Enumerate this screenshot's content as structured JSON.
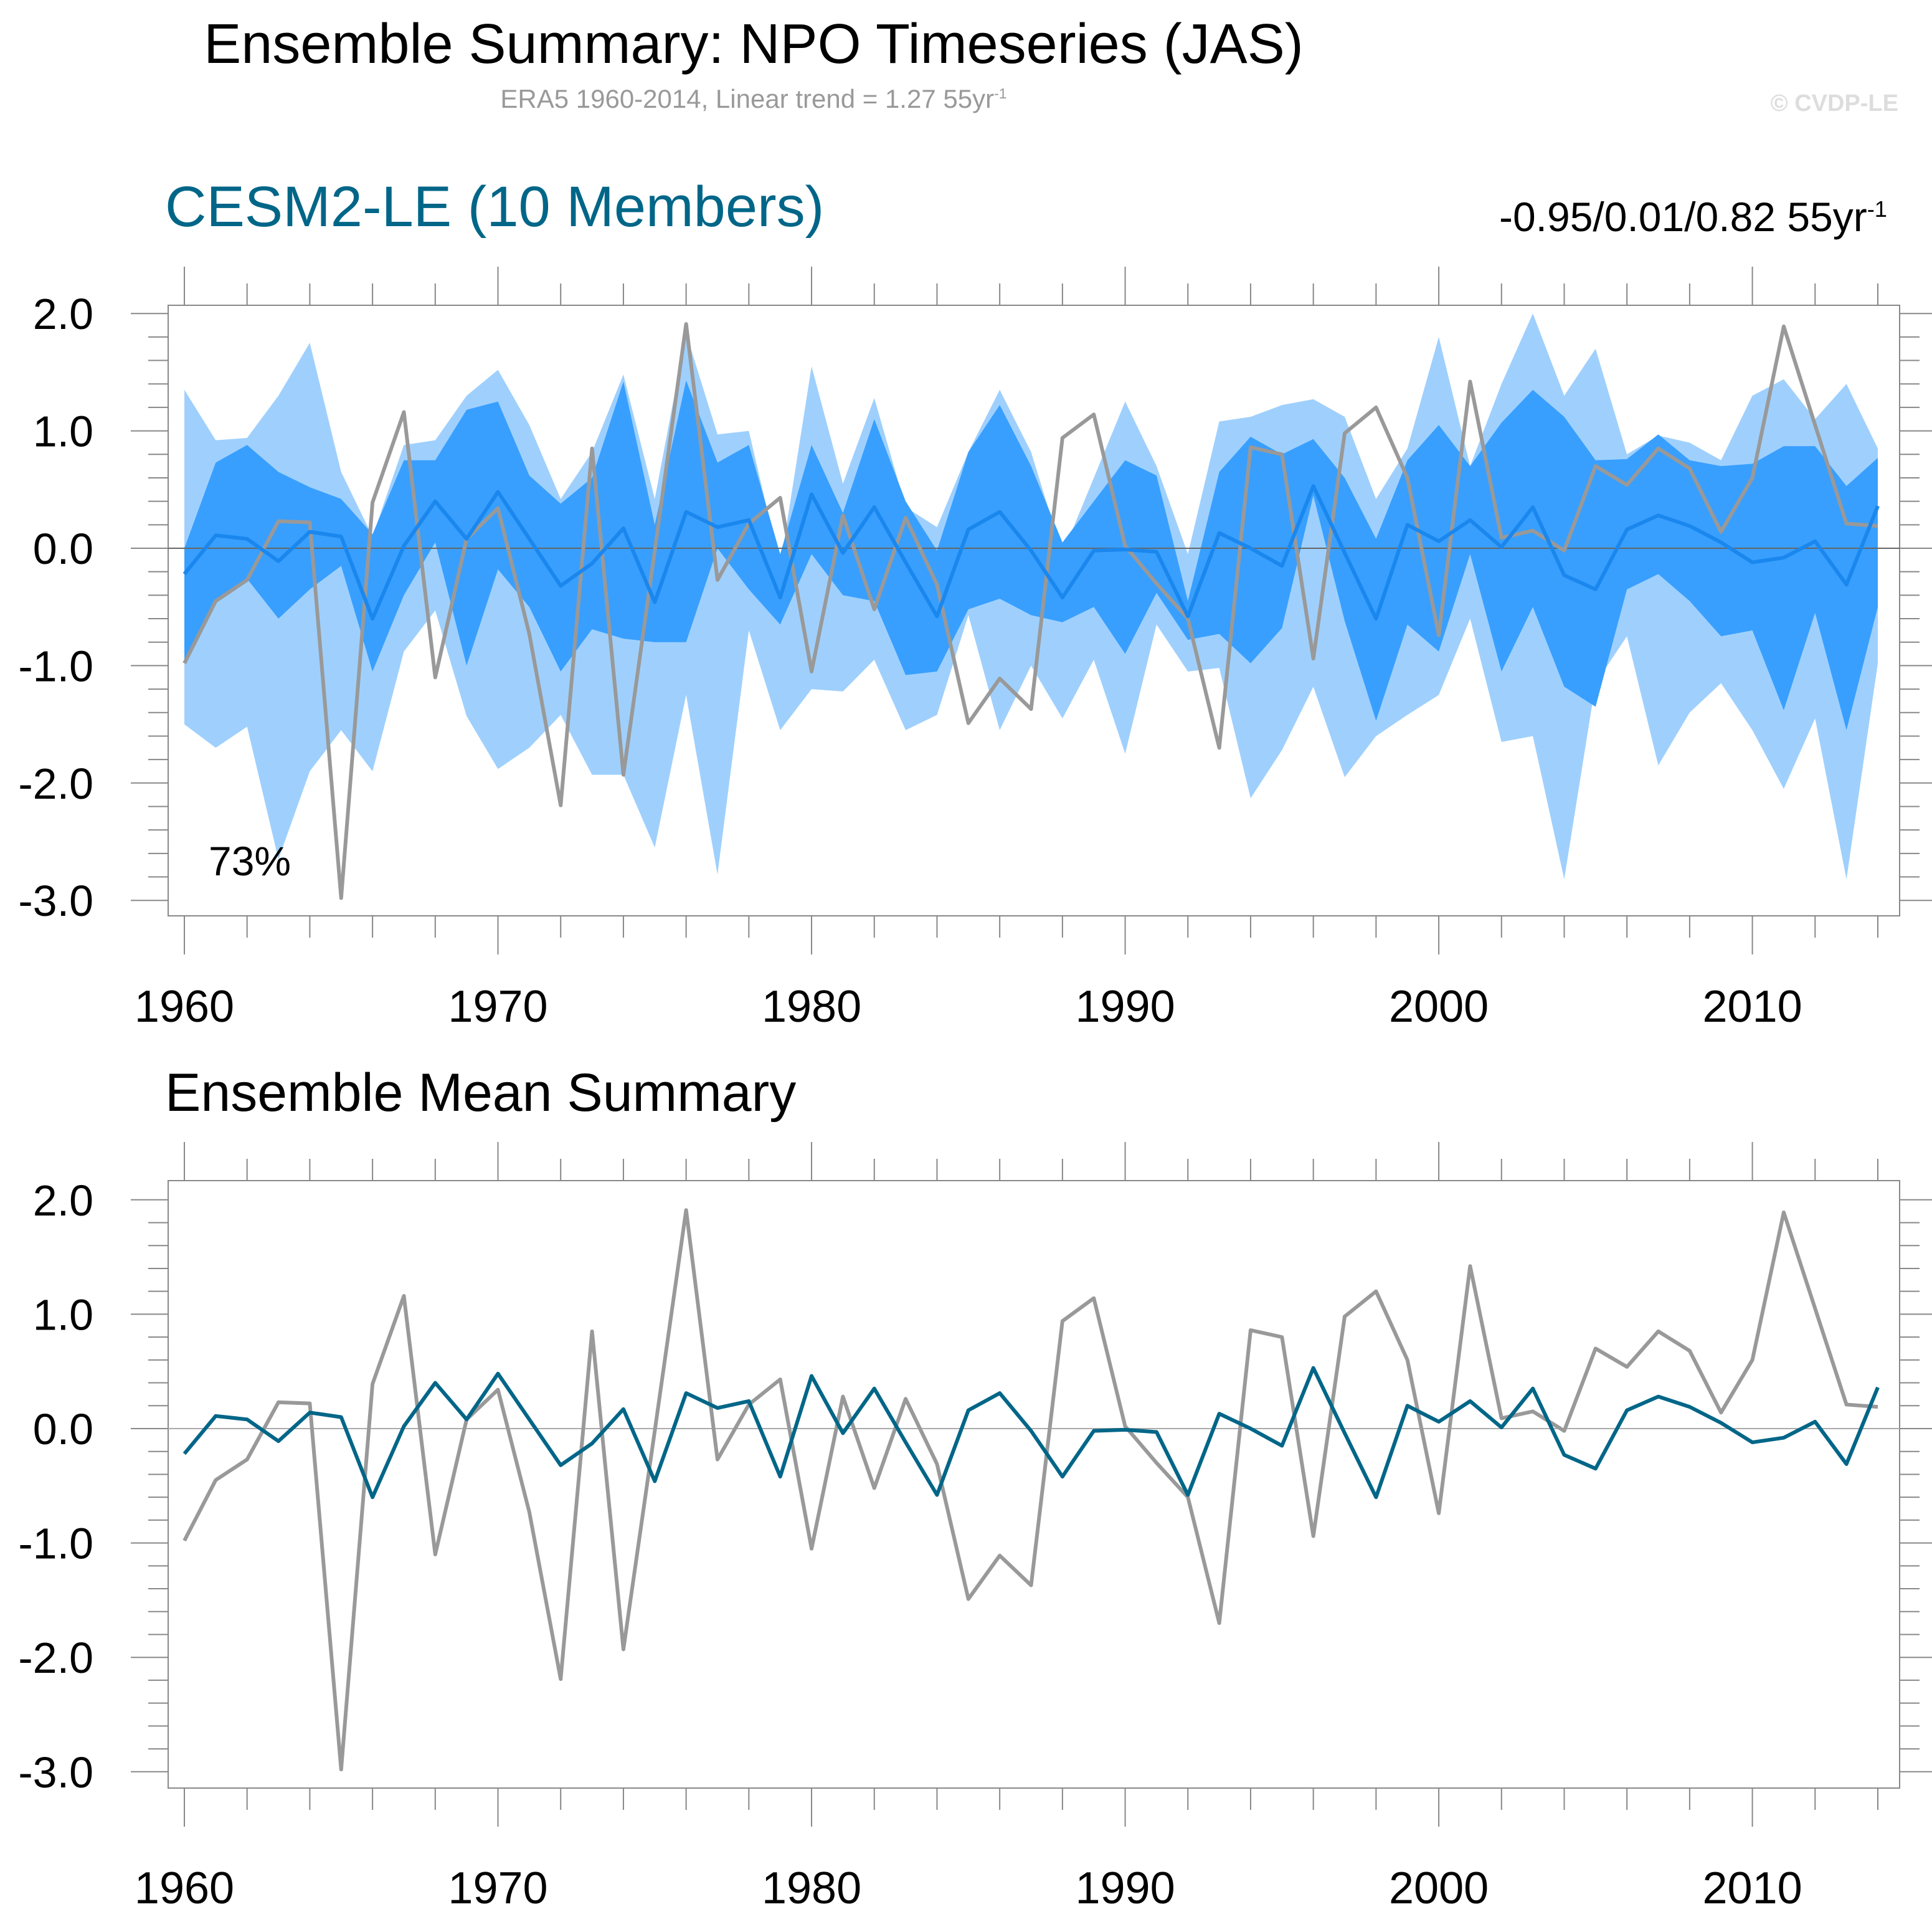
{
  "header": {
    "title": "Ensemble Summary: NPO Timeseries (JAS)",
    "subtitle": "ERA5 1960-2014, Linear trend = 1.27 55yr",
    "subtitle_sup": "-1",
    "copyright": "© CVDP-LE"
  },
  "panel_top": {
    "title": "CESM2-LE (10 Members)",
    "trend": "-0.95/0.01/0.82 55yr",
    "trend_sup": "-1",
    "annotation": "73%"
  },
  "panel_bottom": {
    "title": "Ensemble Mean Summary"
  },
  "colors": {
    "model_title": "#006688",
    "outer_band": "#9fd0fd",
    "inner_band": "#389ffe",
    "ensemble_mean_top": "#1a87ee",
    "ensemble_mean_bottom": "#006688",
    "observations": "#999999"
  },
  "chart_data": [
    {
      "type": "area",
      "title": "CESM2-LE (10 Members)",
      "xlabel": "",
      "ylabel": "",
      "xlim": [
        1960,
        2014
      ],
      "ylim": [
        -3.0,
        2.0
      ],
      "xticks": [
        "1960",
        "1970",
        "1980",
        "1990",
        "2000",
        "2010"
      ],
      "yticks": [
        "2.0",
        "1.0",
        "0.0",
        "-1.0",
        "-2.0",
        "-3.0"
      ],
      "x": [
        1960,
        1961,
        1962,
        1963,
        1964,
        1965,
        1966,
        1967,
        1968,
        1969,
        1970,
        1971,
        1972,
        1973,
        1974,
        1975,
        1976,
        1977,
        1978,
        1979,
        1980,
        1981,
        1982,
        1983,
        1984,
        1985,
        1986,
        1987,
        1988,
        1989,
        1990,
        1991,
        1992,
        1993,
        1994,
        1995,
        1996,
        1997,
        1998,
        1999,
        2000,
        2001,
        2002,
        2003,
        2004,
        2005,
        2006,
        2007,
        2008,
        2009,
        2010,
        2011,
        2012,
        2013,
        2014
      ],
      "series": [
        {
          "name": "ensemble max",
          "role": "outer-upper",
          "values": [
            1.35,
            0.92,
            0.94,
            1.3,
            1.75,
            0.65,
            0.1,
            0.88,
            0.92,
            1.3,
            1.52,
            1.05,
            0.42,
            0.82,
            1.48,
            0.42,
            1.83,
            0.97,
            1.0,
            -0.15,
            1.55,
            0.55,
            1.28,
            0.35,
            0.18,
            0.82,
            1.35,
            0.82,
            -0.05,
            0.6,
            1.25,
            0.7,
            -0.05,
            1.08,
            1.12,
            1.22,
            1.27,
            1.12,
            0.42,
            0.85,
            1.8,
            0.7,
            1.4,
            2.0,
            1.3,
            1.7,
            0.8,
            0.96,
            0.9,
            0.75,
            1.3,
            1.44,
            1.1,
            1.4,
            0.85
          ]
        },
        {
          "name": "ensemble 84th pct",
          "role": "inner-upper",
          "values": [
            0.0,
            0.73,
            0.88,
            0.65,
            0.52,
            0.42,
            0.12,
            0.75,
            0.75,
            1.18,
            1.25,
            0.62,
            0.38,
            0.6,
            1.42,
            0.2,
            1.43,
            0.73,
            0.88,
            -0.05,
            0.88,
            0.3,
            1.1,
            0.4,
            -0.02,
            0.82,
            1.22,
            0.7,
            0.05,
            0.4,
            0.75,
            0.62,
            -0.45,
            0.65,
            0.95,
            0.8,
            0.93,
            0.6,
            0.08,
            0.75,
            1.05,
            0.7,
            1.07,
            1.35,
            1.12,
            0.75,
            0.76,
            0.97,
            0.75,
            0.7,
            0.72,
            0.87,
            0.87,
            0.53,
            0.77
          ]
        },
        {
          "name": "ensemble 16th pct",
          "role": "inner-lower",
          "values": [
            -0.95,
            -0.45,
            -0.26,
            -0.6,
            -0.35,
            -0.15,
            -1.05,
            -0.4,
            0.05,
            -1.0,
            -0.18,
            -0.5,
            -1.05,
            -0.69,
            -0.77,
            -0.8,
            -0.8,
            0.0,
            -0.35,
            -0.65,
            -0.05,
            -0.4,
            -0.45,
            -1.08,
            -1.05,
            -0.52,
            -0.43,
            -0.57,
            -0.63,
            -0.5,
            -0.9,
            -0.38,
            -0.78,
            -0.73,
            -0.98,
            -0.68,
            0.45,
            -0.62,
            -1.47,
            -0.65,
            -0.88,
            -0.05,
            -1.05,
            -0.5,
            -1.18,
            -1.35,
            -0.35,
            -0.22,
            -0.45,
            -0.75,
            -0.7,
            -1.38,
            -0.55,
            -1.55,
            -0.5
          ]
        },
        {
          "name": "ensemble min",
          "role": "outer-lower",
          "values": [
            -1.5,
            -1.7,
            -1.52,
            -2.65,
            -1.9,
            -1.55,
            -1.9,
            -0.88,
            -0.53,
            -1.43,
            -1.88,
            -1.7,
            -1.42,
            -1.93,
            -1.93,
            -2.55,
            -1.25,
            -2.78,
            -0.7,
            -1.55,
            -1.2,
            -1.22,
            -0.95,
            -1.55,
            -1.42,
            -0.57,
            -1.55,
            -1.0,
            -1.45,
            -0.95,
            -1.75,
            -0.65,
            -1.05,
            -1.02,
            -2.13,
            -1.72,
            -1.18,
            -1.95,
            -1.6,
            -1.42,
            -1.25,
            -0.6,
            -1.65,
            -1.6,
            -2.82,
            -1.15,
            -0.75,
            -1.85,
            -1.4,
            -1.15,
            -1.55,
            -2.05,
            -1.45,
            -2.82,
            -0.98
          ]
        },
        {
          "name": "CESM2-LE ensemble mean",
          "values": [
            -0.22,
            0.11,
            0.08,
            -0.11,
            0.14,
            0.1,
            -0.6,
            0.02,
            0.4,
            0.08,
            0.48,
            0.08,
            -0.32,
            -0.13,
            0.17,
            -0.46,
            0.31,
            0.18,
            0.24,
            -0.42,
            0.46,
            -0.04,
            0.35,
            -0.12,
            -0.58,
            0.16,
            0.31,
            -0.02,
            -0.42,
            -0.02,
            -0.01,
            -0.03,
            -0.58,
            0.13,
            0.0,
            -0.15,
            0.53,
            -0.04,
            -0.6,
            0.2,
            0.06,
            0.24,
            0.01,
            0.35,
            -0.23,
            -0.35,
            0.16,
            0.28,
            0.19,
            0.05,
            -0.12,
            -0.08,
            0.06,
            -0.31,
            0.36
          ]
        },
        {
          "name": "ERA5",
          "values": [
            -0.98,
            -0.45,
            -0.27,
            0.23,
            0.22,
            -2.98,
            0.39,
            1.16,
            -1.1,
            0.08,
            0.34,
            -0.73,
            -2.19,
            0.85,
            -1.93,
            -0.02,
            1.91,
            -0.27,
            0.21,
            0.43,
            -1.05,
            0.28,
            -0.52,
            0.26,
            -0.31,
            -1.49,
            -1.11,
            -1.37,
            0.94,
            1.14,
            0.02,
            -0.3,
            -0.6,
            -1.7,
            0.86,
            0.8,
            -0.94,
            0.98,
            1.2,
            0.6,
            -0.74,
            1.42,
            0.09,
            0.15,
            -0.02,
            0.7,
            0.54,
            0.85,
            0.68,
            0.14,
            0.6,
            1.89,
            1.05,
            0.21,
            0.19
          ]
        }
      ],
      "annotations": [
        "73%",
        "-0.95/0.01/0.82 55yr-1"
      ],
      "zero_line": true,
      "grid": false
    },
    {
      "type": "line",
      "title": "Ensemble Mean Summary",
      "xlabel": "",
      "ylabel": "",
      "xlim": [
        1960,
        2014
      ],
      "ylim": [
        -3.0,
        2.0
      ],
      "xticks": [
        "1960",
        "1970",
        "1980",
        "1990",
        "2000",
        "2010"
      ],
      "yticks": [
        "2.0",
        "1.0",
        "0.0",
        "-1.0",
        "-2.0",
        "-3.0"
      ],
      "series_ref": "same x, ERA5 and CESM2-LE ensemble mean values as panel 1",
      "zero_line": true,
      "grid": false
    }
  ]
}
